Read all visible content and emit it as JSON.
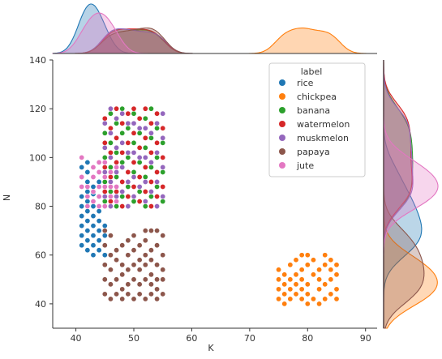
{
  "chart_data": {
    "type": "scatter",
    "title": "",
    "xlabel": "K",
    "ylabel": "N",
    "xlim": [
      36,
      92
    ],
    "ylim": [
      30,
      140
    ],
    "xticks": [
      40,
      50,
      60,
      70,
      80,
      90
    ],
    "yticks": [
      40,
      60,
      80,
      100,
      120,
      140
    ],
    "grid": false,
    "legend": {
      "title": "label",
      "placement": "top-right"
    },
    "marginals": {
      "top": "kde of K by label",
      "right": "kde of N by label"
    },
    "series": [
      {
        "name": "rice",
        "color": "#1f77b4",
        "points": [
          [
            41,
            64
          ],
          [
            41,
            68
          ],
          [
            41,
            72
          ],
          [
            41,
            76
          ],
          [
            41,
            80
          ],
          [
            41,
            84
          ],
          [
            41,
            96
          ],
          [
            42,
            62
          ],
          [
            42,
            66
          ],
          [
            42,
            70
          ],
          [
            42,
            74
          ],
          [
            42,
            78
          ],
          [
            42,
            82
          ],
          [
            42,
            86
          ],
          [
            42,
            90
          ],
          [
            42,
            94
          ],
          [
            42,
            98
          ],
          [
            43,
            60
          ],
          [
            43,
            64
          ],
          [
            43,
            68
          ],
          [
            43,
            72
          ],
          [
            43,
            76
          ],
          [
            43,
            80
          ],
          [
            43,
            85
          ],
          [
            44,
            62
          ],
          [
            44,
            66
          ],
          [
            44,
            70
          ],
          [
            44,
            74
          ],
          [
            44,
            78
          ],
          [
            45,
            60
          ],
          [
            45,
            64
          ],
          [
            45,
            68
          ],
          [
            45,
            72
          ],
          [
            45,
            82
          ],
          [
            43,
            88
          ],
          [
            44,
            90
          ]
        ]
      },
      {
        "name": "chickpea",
        "color": "#ff7f0e",
        "points": [
          [
            75,
            42
          ],
          [
            75,
            46
          ],
          [
            75,
            50
          ],
          [
            75,
            54
          ],
          [
            76,
            44
          ],
          [
            76,
            48
          ],
          [
            76,
            52
          ],
          [
            77,
            42
          ],
          [
            77,
            46
          ],
          [
            77,
            50
          ],
          [
            77,
            56
          ],
          [
            78,
            44
          ],
          [
            78,
            48
          ],
          [
            78,
            52
          ],
          [
            78,
            58
          ],
          [
            79,
            42
          ],
          [
            79,
            46
          ],
          [
            79,
            50
          ],
          [
            79,
            54
          ],
          [
            79,
            60
          ],
          [
            80,
            44
          ],
          [
            80,
            48
          ],
          [
            80,
            56
          ],
          [
            80,
            60
          ],
          [
            81,
            42
          ],
          [
            81,
            52
          ],
          [
            81,
            58
          ],
          [
            82,
            46
          ],
          [
            82,
            50
          ],
          [
            82,
            54
          ],
          [
            83,
            42
          ],
          [
            83,
            48
          ],
          [
            83,
            56
          ],
          [
            83,
            60
          ],
          [
            84,
            44
          ],
          [
            84,
            50
          ],
          [
            84,
            54
          ],
          [
            84,
            58
          ],
          [
            85,
            42
          ],
          [
            85,
            46
          ],
          [
            85,
            52
          ],
          [
            85,
            56
          ],
          [
            76,
            40
          ],
          [
            82,
            40
          ],
          [
            80,
            40
          ]
        ]
      },
      {
        "name": "banana",
        "color": "#2ca02c",
        "points": [
          [
            45,
            82
          ],
          [
            45,
            90
          ],
          [
            45,
            100
          ],
          [
            45,
            110
          ],
          [
            46,
            86
          ],
          [
            46,
            96
          ],
          [
            46,
            106
          ],
          [
            46,
            118
          ],
          [
            47,
            80
          ],
          [
            47,
            92
          ],
          [
            47,
            102
          ],
          [
            47,
            114
          ],
          [
            48,
            84
          ],
          [
            48,
            98
          ],
          [
            48,
            110
          ],
          [
            48,
            120
          ],
          [
            49,
            88
          ],
          [
            49,
            100
          ],
          [
            49,
            112
          ],
          [
            50,
            82
          ],
          [
            50,
            94
          ],
          [
            50,
            106
          ],
          [
            50,
            118
          ],
          [
            51,
            86
          ],
          [
            51,
            98
          ],
          [
            51,
            110
          ],
          [
            52,
            80
          ],
          [
            52,
            92
          ],
          [
            52,
            104
          ],
          [
            52,
            116
          ],
          [
            53,
            84
          ],
          [
            53,
            96
          ],
          [
            53,
            108
          ],
          [
            53,
            120
          ],
          [
            54,
            88
          ],
          [
            54,
            100
          ],
          [
            54,
            112
          ],
          [
            55,
            82
          ],
          [
            55,
            94
          ],
          [
            55,
            106
          ]
        ]
      },
      {
        "name": "watermelon",
        "color": "#d62728",
        "points": [
          [
            45,
            86
          ],
          [
            45,
            96
          ],
          [
            45,
            106
          ],
          [
            45,
            116
          ],
          [
            46,
            82
          ],
          [
            46,
            92
          ],
          [
            46,
            102
          ],
          [
            46,
            112
          ],
          [
            47,
            86
          ],
          [
            47,
            98
          ],
          [
            47,
            108
          ],
          [
            47,
            120
          ],
          [
            48,
            80
          ],
          [
            48,
            90
          ],
          [
            48,
            102
          ],
          [
            48,
            114
          ],
          [
            49,
            84
          ],
          [
            49,
            94
          ],
          [
            49,
            106
          ],
          [
            49,
            118
          ],
          [
            50,
            88
          ],
          [
            50,
            98
          ],
          [
            50,
            110
          ],
          [
            50,
            120
          ],
          [
            51,
            82
          ],
          [
            51,
            92
          ],
          [
            51,
            104
          ],
          [
            51,
            116
          ],
          [
            52,
            86
          ],
          [
            52,
            96
          ],
          [
            52,
            108
          ],
          [
            52,
            120
          ],
          [
            53,
            80
          ],
          [
            53,
            90
          ],
          [
            53,
            102
          ],
          [
            53,
            114
          ],
          [
            54,
            84
          ],
          [
            54,
            94
          ],
          [
            54,
            106
          ],
          [
            54,
            118
          ],
          [
            55,
            88
          ],
          [
            55,
            100
          ],
          [
            55,
            112
          ]
        ]
      },
      {
        "name": "muskmelon",
        "color": "#9467bd",
        "points": [
          [
            45,
            84
          ],
          [
            45,
            94
          ],
          [
            45,
            104
          ],
          [
            45,
            114
          ],
          [
            46,
            80
          ],
          [
            46,
            90
          ],
          [
            46,
            100
          ],
          [
            46,
            110
          ],
          [
            46,
            120
          ],
          [
            47,
            84
          ],
          [
            47,
            94
          ],
          [
            47,
            104
          ],
          [
            47,
            116
          ],
          [
            48,
            86
          ],
          [
            48,
            96
          ],
          [
            48,
            106
          ],
          [
            48,
            118
          ],
          [
            49,
            80
          ],
          [
            49,
            90
          ],
          [
            49,
            102
          ],
          [
            49,
            114
          ],
          [
            50,
            84
          ],
          [
            50,
            92
          ],
          [
            50,
            102
          ],
          [
            50,
            114
          ],
          [
            51,
            88
          ],
          [
            51,
            100
          ],
          [
            51,
            112
          ],
          [
            52,
            82
          ],
          [
            52,
            90
          ],
          [
            52,
            100
          ],
          [
            52,
            112
          ],
          [
            53,
            86
          ],
          [
            53,
            98
          ],
          [
            53,
            110
          ],
          [
            54,
            80
          ],
          [
            54,
            90
          ],
          [
            54,
            102
          ],
          [
            54,
            114
          ],
          [
            55,
            84
          ],
          [
            55,
            96
          ],
          [
            55,
            108
          ],
          [
            55,
            118
          ]
        ]
      },
      {
        "name": "papaya",
        "color": "#8c564b",
        "points": [
          [
            45,
            44
          ],
          [
            45,
            50
          ],
          [
            45,
            56
          ],
          [
            45,
            64
          ],
          [
            45,
            70
          ],
          [
            46,
            42
          ],
          [
            46,
            48
          ],
          [
            46,
            54
          ],
          [
            46,
            60
          ],
          [
            46,
            68
          ],
          [
            47,
            44
          ],
          [
            47,
            50
          ],
          [
            47,
            58
          ],
          [
            47,
            62
          ],
          [
            48,
            42
          ],
          [
            48,
            46
          ],
          [
            48,
            52
          ],
          [
            48,
            56
          ],
          [
            48,
            64
          ],
          [
            49,
            44
          ],
          [
            49,
            48
          ],
          [
            49,
            54
          ],
          [
            49,
            60
          ],
          [
            49,
            66
          ],
          [
            50,
            42
          ],
          [
            50,
            50
          ],
          [
            50,
            56
          ],
          [
            50,
            62
          ],
          [
            50,
            68
          ],
          [
            51,
            44
          ],
          [
            51,
            48
          ],
          [
            51,
            54
          ],
          [
            51,
            58
          ],
          [
            51,
            64
          ],
          [
            52,
            42
          ],
          [
            52,
            50
          ],
          [
            52,
            56
          ],
          [
            52,
            60
          ],
          [
            52,
            66
          ],
          [
            53,
            44
          ],
          [
            53,
            48
          ],
          [
            53,
            52
          ],
          [
            53,
            58
          ],
          [
            53,
            62
          ],
          [
            53,
            70
          ],
          [
            54,
            42
          ],
          [
            54,
            46
          ],
          [
            54,
            50
          ],
          [
            54,
            56
          ],
          [
            54,
            64
          ],
          [
            54,
            70
          ],
          [
            55,
            44
          ],
          [
            55,
            50
          ],
          [
            55,
            54
          ],
          [
            55,
            60
          ],
          [
            55,
            68
          ],
          [
            52,
            70
          ]
        ]
      },
      {
        "name": "jute",
        "color": "#e377c2",
        "points": [
          [
            41,
            100
          ],
          [
            41,
            92
          ],
          [
            41,
            88
          ],
          [
            42,
            84
          ],
          [
            42,
            88
          ],
          [
            42,
            80
          ],
          [
            43,
            82
          ],
          [
            43,
            86
          ],
          [
            43,
            92
          ],
          [
            43,
            96
          ],
          [
            44,
            80
          ],
          [
            44,
            84
          ],
          [
            44,
            88
          ],
          [
            44,
            94
          ],
          [
            44,
            98
          ],
          [
            45,
            80
          ],
          [
            45,
            88
          ],
          [
            45,
            92
          ],
          [
            45,
            98
          ],
          [
            46,
            84
          ],
          [
            46,
            88
          ],
          [
            46,
            94
          ],
          [
            47,
            82
          ],
          [
            47,
            88
          ],
          [
            47,
            96
          ]
        ]
      }
    ]
  }
}
